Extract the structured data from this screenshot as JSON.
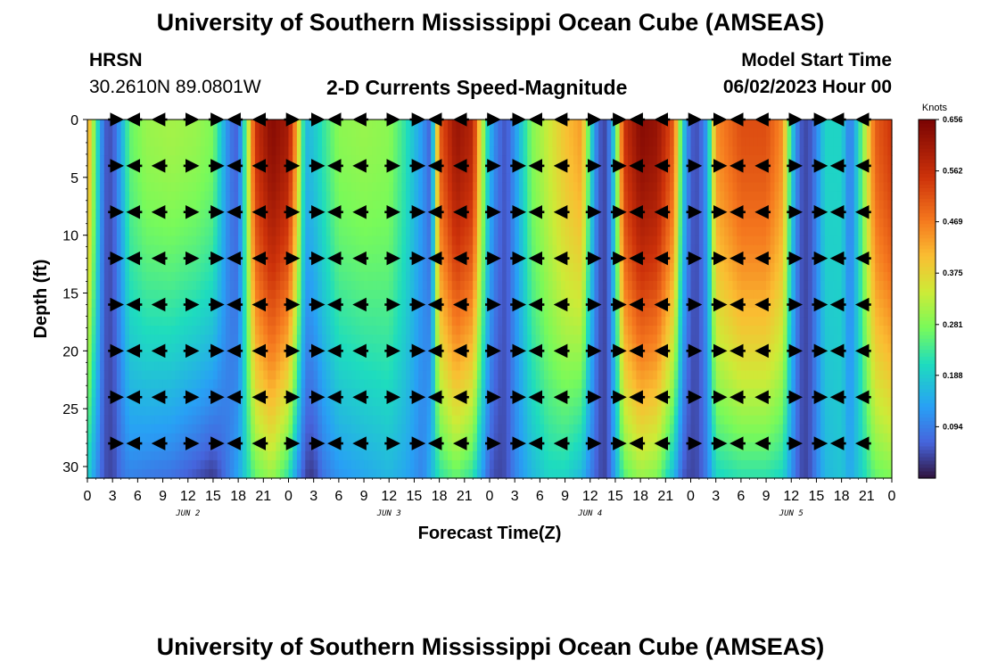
{
  "page": {
    "title_top": "University of Southern Mississippi Ocean Cube (AMSEAS)",
    "title_bottom": "University of Southern Mississippi Ocean Cube (AMSEAS)",
    "station_name": "HRSN",
    "station_coords": "30.2610N  89.0801W",
    "plot_title": "2-D Currents Speed-Magnitude",
    "model_start_label": "Model Start Time",
    "model_start_value": "06/02/2023 Hour 00"
  },
  "chart_data": {
    "type": "heatmap",
    "title": "2-D Currents Speed-Magnitude",
    "xlabel": "Forecast Time(Z)",
    "ylabel": "Depth (ft)",
    "x_range_hours": [
      0,
      96
    ],
    "y_range_ft": [
      0,
      31
    ],
    "y_ticks": [
      0,
      5,
      10,
      15,
      20,
      25,
      30
    ],
    "x_tick_labels": [
      "0",
      "3",
      "6",
      "9",
      "12",
      "15",
      "18",
      "21",
      "0",
      "3",
      "6",
      "9",
      "12",
      "15",
      "18",
      "21",
      "0",
      "3",
      "6",
      "9",
      "12",
      "15",
      "18",
      "21",
      "0",
      "3",
      "6",
      "9",
      "12",
      "15",
      "18",
      "21",
      "0"
    ],
    "date_labels": [
      {
        "label": "JUN 2",
        "hour": 12
      },
      {
        "label": "JUN 3",
        "hour": 36
      },
      {
        "label": "JUN 4",
        "hour": 60
      },
      {
        "label": "JUN 5",
        "hour": 84
      }
    ],
    "colorbar": {
      "title": "Knots",
      "tick_values": [
        "0.656",
        "0.562",
        "0.469",
        "0.375",
        "0.281",
        "0.188",
        "0.094"
      ],
      "min": 0.0,
      "max": 0.656
    },
    "vector_depths_ft": [
      0,
      4,
      8,
      12,
      16,
      20,
      24,
      28
    ],
    "vector_hours": [
      3,
      6,
      9,
      12,
      15,
      18,
      21,
      24,
      27,
      30,
      33,
      36,
      39,
      42,
      45,
      48,
      51,
      54,
      57,
      60,
      63,
      66,
      69,
      72,
      75,
      78,
      81,
      84,
      87,
      90,
      93
    ],
    "speed_profiles_knots": [
      {
        "hour": 0,
        "surface": 0.45,
        "bottom": 0.2
      },
      {
        "hour": 1,
        "surface": 0.25,
        "bottom": 0.12
      },
      {
        "hour": 2,
        "surface": 0.06,
        "bottom": 0.05
      },
      {
        "hour": 3,
        "surface": 0.05,
        "bottom": 0.04
      },
      {
        "hour": 4,
        "surface": 0.14,
        "bottom": 0.08
      },
      {
        "hour": 5,
        "surface": 0.26,
        "bottom": 0.1
      },
      {
        "hour": 7,
        "surface": 0.3,
        "bottom": 0.09
      },
      {
        "hour": 10,
        "surface": 0.31,
        "bottom": 0.08
      },
      {
        "hour": 13,
        "surface": 0.3,
        "bottom": 0.05
      },
      {
        "hour": 15,
        "surface": 0.28,
        "bottom": 0.03
      },
      {
        "hour": 16,
        "surface": 0.18,
        "bottom": 0.06
      },
      {
        "hour": 17,
        "surface": 0.09,
        "bottom": 0.1
      },
      {
        "hour": 18,
        "surface": 0.06,
        "bottom": 0.14
      },
      {
        "hour": 19,
        "surface": 0.28,
        "bottom": 0.2
      },
      {
        "hour": 20,
        "surface": 0.55,
        "bottom": 0.26
      },
      {
        "hour": 22,
        "surface": 0.64,
        "bottom": 0.3
      },
      {
        "hour": 24,
        "surface": 0.6,
        "bottom": 0.22
      },
      {
        "hour": 25,
        "surface": 0.42,
        "bottom": 0.12
      },
      {
        "hour": 26,
        "surface": 0.16,
        "bottom": 0.04
      },
      {
        "hour": 27,
        "surface": 0.18,
        "bottom": 0.03
      },
      {
        "hour": 28,
        "surface": 0.22,
        "bottom": 0.08
      },
      {
        "hour": 30,
        "surface": 0.29,
        "bottom": 0.12
      },
      {
        "hour": 33,
        "surface": 0.3,
        "bottom": 0.14
      },
      {
        "hour": 36,
        "surface": 0.29,
        "bottom": 0.16
      },
      {
        "hour": 38,
        "surface": 0.22,
        "bottom": 0.14
      },
      {
        "hour": 40,
        "surface": 0.12,
        "bottom": 0.1
      },
      {
        "hour": 41,
        "surface": 0.06,
        "bottom": 0.16
      },
      {
        "hour": 42,
        "surface": 0.5,
        "bottom": 0.22
      },
      {
        "hour": 44,
        "surface": 0.62,
        "bottom": 0.26
      },
      {
        "hour": 46,
        "surface": 0.58,
        "bottom": 0.22
      },
      {
        "hour": 47,
        "surface": 0.35,
        "bottom": 0.14
      },
      {
        "hour": 48,
        "surface": 0.16,
        "bottom": 0.06
      },
      {
        "hour": 49,
        "surface": 0.08,
        "bottom": 0.04
      },
      {
        "hour": 50,
        "surface": 0.05,
        "bottom": 0.05
      },
      {
        "hour": 51,
        "surface": 0.12,
        "bottom": 0.1
      },
      {
        "hour": 53,
        "surface": 0.28,
        "bottom": 0.16
      },
      {
        "hour": 55,
        "surface": 0.34,
        "bottom": 0.2
      },
      {
        "hour": 57,
        "surface": 0.4,
        "bottom": 0.2
      },
      {
        "hour": 59,
        "surface": 0.44,
        "bottom": 0.16
      },
      {
        "hour": 60,
        "surface": 0.22,
        "bottom": 0.1
      },
      {
        "hour": 61,
        "surface": 0.06,
        "bottom": 0.05
      },
      {
        "hour": 62,
        "surface": 0.04,
        "bottom": 0.04
      },
      {
        "hour": 63,
        "surface": 0.22,
        "bottom": 0.14
      },
      {
        "hour": 64,
        "surface": 0.55,
        "bottom": 0.25
      },
      {
        "hour": 66,
        "surface": 0.64,
        "bottom": 0.3
      },
      {
        "hour": 68,
        "surface": 0.62,
        "bottom": 0.28
      },
      {
        "hour": 70,
        "surface": 0.5,
        "bottom": 0.16
      },
      {
        "hour": 71,
        "surface": 0.2,
        "bottom": 0.06
      },
      {
        "hour": 72,
        "surface": 0.06,
        "bottom": 0.04
      },
      {
        "hour": 73,
        "surface": 0.05,
        "bottom": 0.05
      },
      {
        "hour": 74,
        "surface": 0.14,
        "bottom": 0.1
      },
      {
        "hour": 75,
        "surface": 0.45,
        "bottom": 0.2
      },
      {
        "hour": 78,
        "surface": 0.52,
        "bottom": 0.22
      },
      {
        "hour": 81,
        "surface": 0.52,
        "bottom": 0.22
      },
      {
        "hour": 83,
        "surface": 0.45,
        "bottom": 0.2
      },
      {
        "hour": 84,
        "surface": 0.2,
        "bottom": 0.12
      },
      {
        "hour": 85,
        "surface": 0.06,
        "bottom": 0.05
      },
      {
        "hour": 86,
        "surface": 0.04,
        "bottom": 0.04
      },
      {
        "hour": 87,
        "surface": 0.1,
        "bottom": 0.1
      },
      {
        "hour": 88,
        "surface": 0.2,
        "bottom": 0.16
      },
      {
        "hour": 90,
        "surface": 0.2,
        "bottom": 0.18
      },
      {
        "hour": 91,
        "surface": 0.08,
        "bottom": 0.14
      },
      {
        "hour": 92,
        "surface": 0.2,
        "bottom": 0.18
      },
      {
        "hour": 94,
        "surface": 0.5,
        "bottom": 0.26
      },
      {
        "hour": 96,
        "surface": 0.55,
        "bottom": 0.28
      }
    ]
  }
}
